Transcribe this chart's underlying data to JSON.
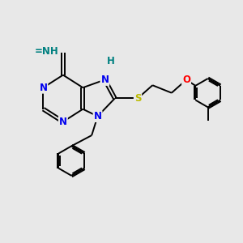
{
  "bg_color": "#e8e8e8",
  "bond_color": "#000000",
  "N_color": "#0000ee",
  "S_color": "#bbbb00",
  "O_color": "#ff0000",
  "H_color": "#008080",
  "font_size": 8.5,
  "line_width": 1.4,
  "figsize": [
    3.0,
    3.0
  ],
  "dpi": 100,
  "xlim": [
    0,
    10
  ],
  "ylim": [
    0,
    10
  ]
}
